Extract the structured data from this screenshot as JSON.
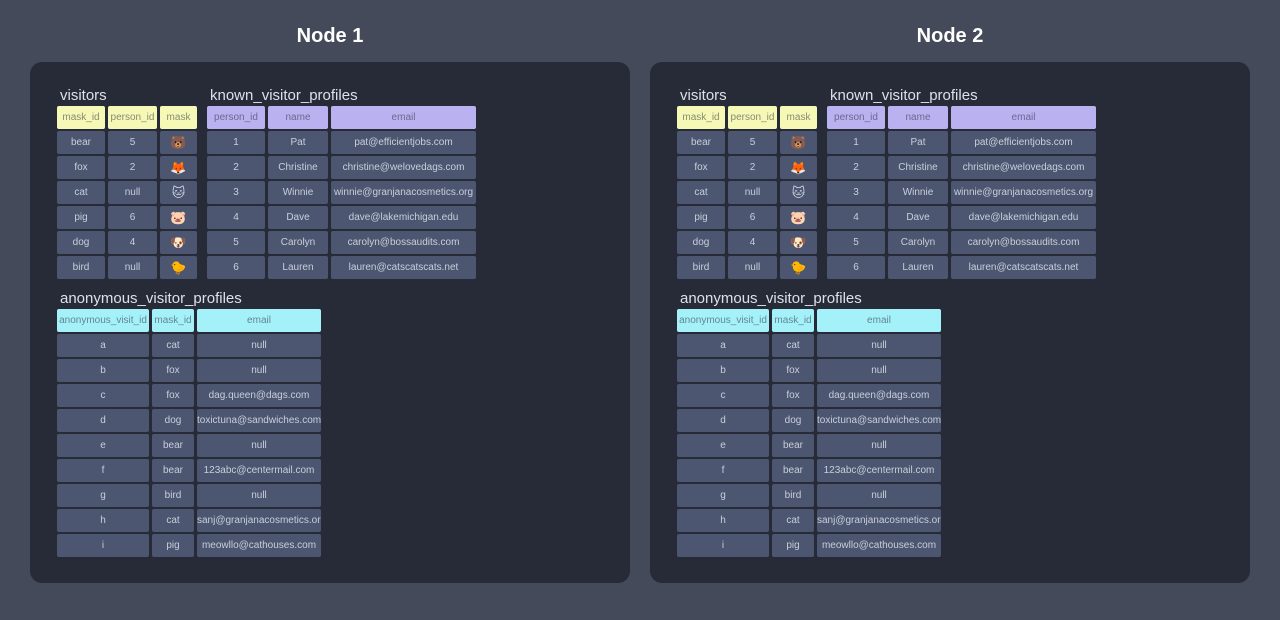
{
  "colors": {
    "page_bg": "#454a5b",
    "panel_bg": "#272b38",
    "cell_bg": "#4c5670",
    "cell_text": "#c9cedb",
    "header_text": "rgba(40,46,60,0.55)",
    "header_yellow": "#f6f9b6",
    "header_purple": "#b9b1f0",
    "header_cyan": "#a5f1f9",
    "node_title_text": "#ffffff",
    "table_title_text": "#dde0e8"
  },
  "nodes": [
    {
      "title": "Node 1",
      "tables": [
        {
          "name": "visitors",
          "theme": "yellow",
          "layout_row": 1,
          "emoji_column": 2,
          "columns": [
            {
              "label": "mask_id",
              "width": 48
            },
            {
              "label": "person_id",
              "width": 49
            },
            {
              "label": "mask",
              "width": 37
            }
          ],
          "rows": [
            [
              "bear",
              "5",
              "🐻"
            ],
            [
              "fox",
              "2",
              "🦊"
            ],
            [
              "cat",
              "null",
              "🐱"
            ],
            [
              "pig",
              "6",
              "🐷"
            ],
            [
              "dog",
              "4",
              "🐶"
            ],
            [
              "bird",
              "null",
              "🐤"
            ]
          ]
        },
        {
          "name": "known_visitor_profiles",
          "theme": "purple",
          "layout_row": 1,
          "columns": [
            {
              "label": "person_id",
              "width": 58
            },
            {
              "label": "name",
              "width": 60
            },
            {
              "label": "email",
              "width": 145
            }
          ],
          "rows": [
            [
              "1",
              "Pat",
              "pat@efficientjobs.com"
            ],
            [
              "2",
              "Christine",
              "christine@welovedags.com"
            ],
            [
              "3",
              "Winnie",
              "winnie@granjanacosmetics.org"
            ],
            [
              "4",
              "Dave",
              "dave@lakemichigan.edu"
            ],
            [
              "5",
              "Carolyn",
              "carolyn@bossaudits.com"
            ],
            [
              "6",
              "Lauren",
              "lauren@catscatscats.net"
            ]
          ]
        },
        {
          "name": "anonymous_visitor_profiles",
          "theme": "cyan",
          "layout_row": 2,
          "columns": [
            {
              "label": "anonymous_visit_id",
              "width": 92
            },
            {
              "label": "mask_id",
              "width": 42
            },
            {
              "label": "email",
              "width": 124
            }
          ],
          "rows": [
            [
              "a",
              "cat",
              "null"
            ],
            [
              "b",
              "fox",
              "null"
            ],
            [
              "c",
              "fox",
              "dag.queen@dags.com"
            ],
            [
              "d",
              "dog",
              "toxictuna@sandwiches.com"
            ],
            [
              "e",
              "bear",
              "null"
            ],
            [
              "f",
              "bear",
              "123abc@centermail.com"
            ],
            [
              "g",
              "bird",
              "null"
            ],
            [
              "h",
              "cat",
              "sanj@granjanacosmetics.org"
            ],
            [
              "i",
              "pig",
              "meowllo@cathouses.com"
            ]
          ]
        }
      ]
    },
    {
      "title": "Node 2",
      "tables": [
        {
          "name": "visitors",
          "theme": "yellow",
          "layout_row": 1,
          "emoji_column": 2,
          "columns": [
            {
              "label": "mask_id",
              "width": 48
            },
            {
              "label": "person_id",
              "width": 49
            },
            {
              "label": "mask",
              "width": 37
            }
          ],
          "rows": [
            [
              "bear",
              "5",
              "🐻"
            ],
            [
              "fox",
              "2",
              "🦊"
            ],
            [
              "cat",
              "null",
              "🐱"
            ],
            [
              "pig",
              "6",
              "🐷"
            ],
            [
              "dog",
              "4",
              "🐶"
            ],
            [
              "bird",
              "null",
              "🐤"
            ]
          ]
        },
        {
          "name": "known_visitor_profiles",
          "theme": "purple",
          "layout_row": 1,
          "columns": [
            {
              "label": "person_id",
              "width": 58
            },
            {
              "label": "name",
              "width": 60
            },
            {
              "label": "email",
              "width": 145
            }
          ],
          "rows": [
            [
              "1",
              "Pat",
              "pat@efficientjobs.com"
            ],
            [
              "2",
              "Christine",
              "christine@welovedags.com"
            ],
            [
              "3",
              "Winnie",
              "winnie@granjanacosmetics.org"
            ],
            [
              "4",
              "Dave",
              "dave@lakemichigan.edu"
            ],
            [
              "5",
              "Carolyn",
              "carolyn@bossaudits.com"
            ],
            [
              "6",
              "Lauren",
              "lauren@catscatscats.net"
            ]
          ]
        },
        {
          "name": "anonymous_visitor_profiles",
          "theme": "cyan",
          "layout_row": 2,
          "columns": [
            {
              "label": "anonymous_visit_id",
              "width": 92
            },
            {
              "label": "mask_id",
              "width": 42
            },
            {
              "label": "email",
              "width": 124
            }
          ],
          "rows": [
            [
              "a",
              "cat",
              "null"
            ],
            [
              "b",
              "fox",
              "null"
            ],
            [
              "c",
              "fox",
              "dag.queen@dags.com"
            ],
            [
              "d",
              "dog",
              "toxictuna@sandwiches.com"
            ],
            [
              "e",
              "bear",
              "null"
            ],
            [
              "f",
              "bear",
              "123abc@centermail.com"
            ],
            [
              "g",
              "bird",
              "null"
            ],
            [
              "h",
              "cat",
              "sanj@granjanacosmetics.org"
            ],
            [
              "i",
              "pig",
              "meowllo@cathouses.com"
            ]
          ]
        }
      ]
    }
  ]
}
